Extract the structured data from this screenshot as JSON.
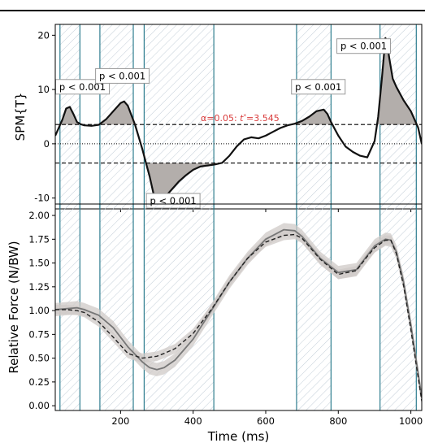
{
  "chart_data": [
    {
      "type": "line",
      "panel": "SPM",
      "ylabel": "SPM{T}",
      "xlim": [
        20,
        1030
      ],
      "ylim": [
        -12,
        22
      ],
      "yticks": [
        -10,
        0,
        10,
        20
      ],
      "xticks": [
        200,
        400,
        600,
        800,
        1000
      ],
      "show_xtick_labels": false,
      "grid": false,
      "threshold": 3.545,
      "threshold_label": {
        "prefix": "α=0.05:  ",
        "tvar": "t",
        "sup": "*",
        "suffix": "=3.545"
      },
      "zero_line": 0,
      "series": [
        {
          "x": [
            20,
            30,
            40,
            50,
            60,
            70,
            80,
            90,
            100,
            120,
            140,
            160,
            180,
            200,
            210,
            220,
            240,
            260,
            270,
            280,
            290,
            300,
            310,
            320,
            340,
            360,
            380,
            400,
            420,
            440,
            460,
            480,
            500,
            520,
            540,
            560,
            580,
            600,
            620,
            640,
            660,
            680,
            700,
            720,
            740,
            760,
            770,
            780,
            800,
            820,
            840,
            860,
            880,
            900,
            910,
            920,
            930,
            935,
            940,
            950,
            960,
            980,
            1000,
            1020,
            1030
          ],
          "y": [
            1.5,
            3,
            4.5,
            6.5,
            6.8,
            5.5,
            4,
            3.6,
            3.4,
            3.3,
            3.5,
            4.5,
            6,
            7.5,
            7.8,
            7,
            3.5,
            -1,
            -3.5,
            -6,
            -9,
            -10.8,
            -10.7,
            -10,
            -8.5,
            -7,
            -5.8,
            -4.8,
            -4.2,
            -4,
            -3.8,
            -3.5,
            -2.2,
            -0.5,
            0.8,
            1.2,
            1,
            1.5,
            2.2,
            2.9,
            3.4,
            3.7,
            4.2,
            5,
            6,
            6.3,
            5.5,
            4,
            1.5,
            -0.5,
            -1.5,
            -2.2,
            -2.5,
            0.5,
            5,
            12,
            19.5,
            18.5,
            16,
            12,
            10.5,
            8,
            6,
            3,
            0
          ]
        }
      ],
      "clusters": [
        {
          "x0": 33,
          "x1": 88,
          "label": "p < 0.001",
          "sign": "pos",
          "label_x": 95,
          "label_y": 10.5
        },
        {
          "x0": 143,
          "x1": 235,
          "label": "p < 0.001",
          "sign": "pos",
          "label_x": 205,
          "label_y": 12.5
        },
        {
          "x0": 265,
          "x1": 457,
          "label": "p < 0.001",
          "sign": "neg",
          "label_x": 345,
          "label_y": -10.5
        },
        {
          "x0": 685,
          "x1": 780,
          "label": "p < 0.001",
          "sign": "pos",
          "label_x": 745,
          "label_y": 10.5
        },
        {
          "x0": 915,
          "x1": 1015,
          "label": "p < 0.001",
          "sign": "pos",
          "label_x": 870,
          "label_y": 18
        }
      ]
    },
    {
      "type": "line",
      "panel": "force",
      "xlabel": "Time (ms)",
      "ylabel": "Relative Force (N/BW)",
      "xlim": [
        20,
        1030
      ],
      "ylim": [
        -0.05,
        2.12
      ],
      "yticks": [
        0.0,
        0.25,
        0.5,
        0.75,
        1.0,
        1.25,
        1.5,
        1.75,
        2.0
      ],
      "ytick_labels": [
        "0.00",
        "0.25",
        "0.50",
        "0.75",
        "1.00",
        "1.25",
        "1.50",
        "1.75",
        "2.00"
      ],
      "xticks": [
        200,
        400,
        600,
        800,
        1000
      ],
      "xtick_labels": [
        "200",
        "400",
        "600",
        "800",
        "1000"
      ],
      "grid": false,
      "series": [
        {
          "style": "solid",
          "color": "#777777",
          "band": 0.07,
          "x": [
            20,
            50,
            80,
            100,
            140,
            180,
            220,
            260,
            280,
            300,
            320,
            350,
            400,
            450,
            500,
            550,
            600,
            650,
            680,
            700,
            750,
            800,
            850,
            880,
            900,
            930,
            945,
            960,
            980,
            1000,
            1020,
            1030
          ],
          "y": [
            1.01,
            1.02,
            1.03,
            1.01,
            0.95,
            0.82,
            0.62,
            0.46,
            0.4,
            0.38,
            0.4,
            0.48,
            0.7,
            1.0,
            1.3,
            1.55,
            1.75,
            1.85,
            1.84,
            1.78,
            1.55,
            1.4,
            1.43,
            1.58,
            1.68,
            1.75,
            1.74,
            1.62,
            1.3,
            0.85,
            0.35,
            0.08
          ]
        },
        {
          "style": "dashed",
          "color": "#222222",
          "band": 0.05,
          "x": [
            20,
            50,
            80,
            100,
            140,
            180,
            220,
            260,
            280,
            300,
            320,
            350,
            400,
            450,
            500,
            550,
            600,
            650,
            680,
            700,
            750,
            800,
            850,
            880,
            900,
            930,
            945,
            960,
            980,
            1000,
            1020,
            1030
          ],
          "y": [
            1.01,
            1.01,
            1.0,
            0.98,
            0.88,
            0.72,
            0.55,
            0.5,
            0.51,
            0.52,
            0.55,
            0.6,
            0.76,
            1.01,
            1.3,
            1.55,
            1.72,
            1.79,
            1.8,
            1.76,
            1.54,
            1.38,
            1.42,
            1.57,
            1.66,
            1.74,
            1.74,
            1.6,
            1.26,
            0.8,
            0.3,
            0.05
          ]
        }
      ],
      "clusters": [
        {
          "x0": 33,
          "x1": 88
        },
        {
          "x0": 143,
          "x1": 235
        },
        {
          "x0": 265,
          "x1": 457
        },
        {
          "x0": 685,
          "x1": 780
        },
        {
          "x0": 915,
          "x1": 1015
        }
      ]
    }
  ],
  "colors": {
    "cluster_line": "#2e7d8f",
    "hatch": "#b9c6d2",
    "shade": "#b3aeab",
    "threshold_text": "#d93c3c",
    "curve": "#111111",
    "band": "#cfcac7"
  }
}
